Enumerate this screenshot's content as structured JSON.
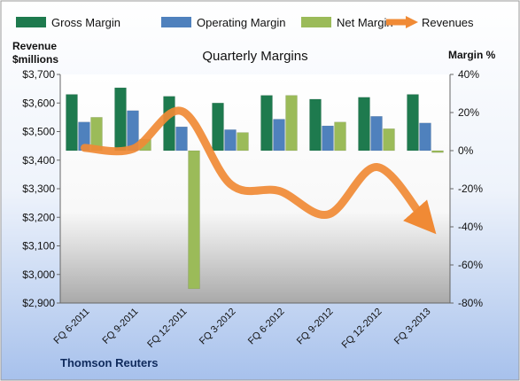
{
  "chart_data": {
    "type": "bar",
    "title": "Quarterly Margins",
    "ylabel_left": [
      "Revenue",
      "$millions"
    ],
    "ylabel_right": "Margin %",
    "source": "Thomson Reuters",
    "categories": [
      "FQ 6-2011",
      "FQ 9-2011",
      "FQ 12-2011",
      "FQ 3-2012",
      "FQ 6-2012",
      "FQ 9-2012",
      "FQ 12-2012",
      "FQ 3-2013"
    ],
    "left_axis": {
      "min": 2900,
      "max": 3700,
      "step": 100,
      "prefix": "$"
    },
    "right_axis": {
      "min": -80,
      "max": 40,
      "step": 20,
      "suffix": "%"
    },
    "series": [
      {
        "name": "Gross Margin",
        "type": "bar",
        "axis": "right",
        "color": "#1e7a4e",
        "values": [
          29.5,
          33,
          28.5,
          25,
          29,
          27,
          28,
          29.5
        ]
      },
      {
        "name": "Operating Margin",
        "type": "bar",
        "axis": "right",
        "color": "#4f81bd",
        "values": [
          15,
          21,
          12.5,
          11,
          16.5,
          13,
          18,
          14.5
        ]
      },
      {
        "name": "Net Margin",
        "type": "bar",
        "axis": "right",
        "color": "#9bbb59",
        "values": [
          17.5,
          6,
          -72.5,
          9.5,
          29,
          15,
          11.5,
          -1
        ]
      },
      {
        "name": "Revenues",
        "type": "line",
        "axis": "left",
        "color": "#f08a35",
        "values": [
          3443,
          3440,
          3571,
          3315,
          3292,
          3210,
          3376,
          3183
        ]
      }
    ],
    "legend_position": "top",
    "grid": false
  }
}
